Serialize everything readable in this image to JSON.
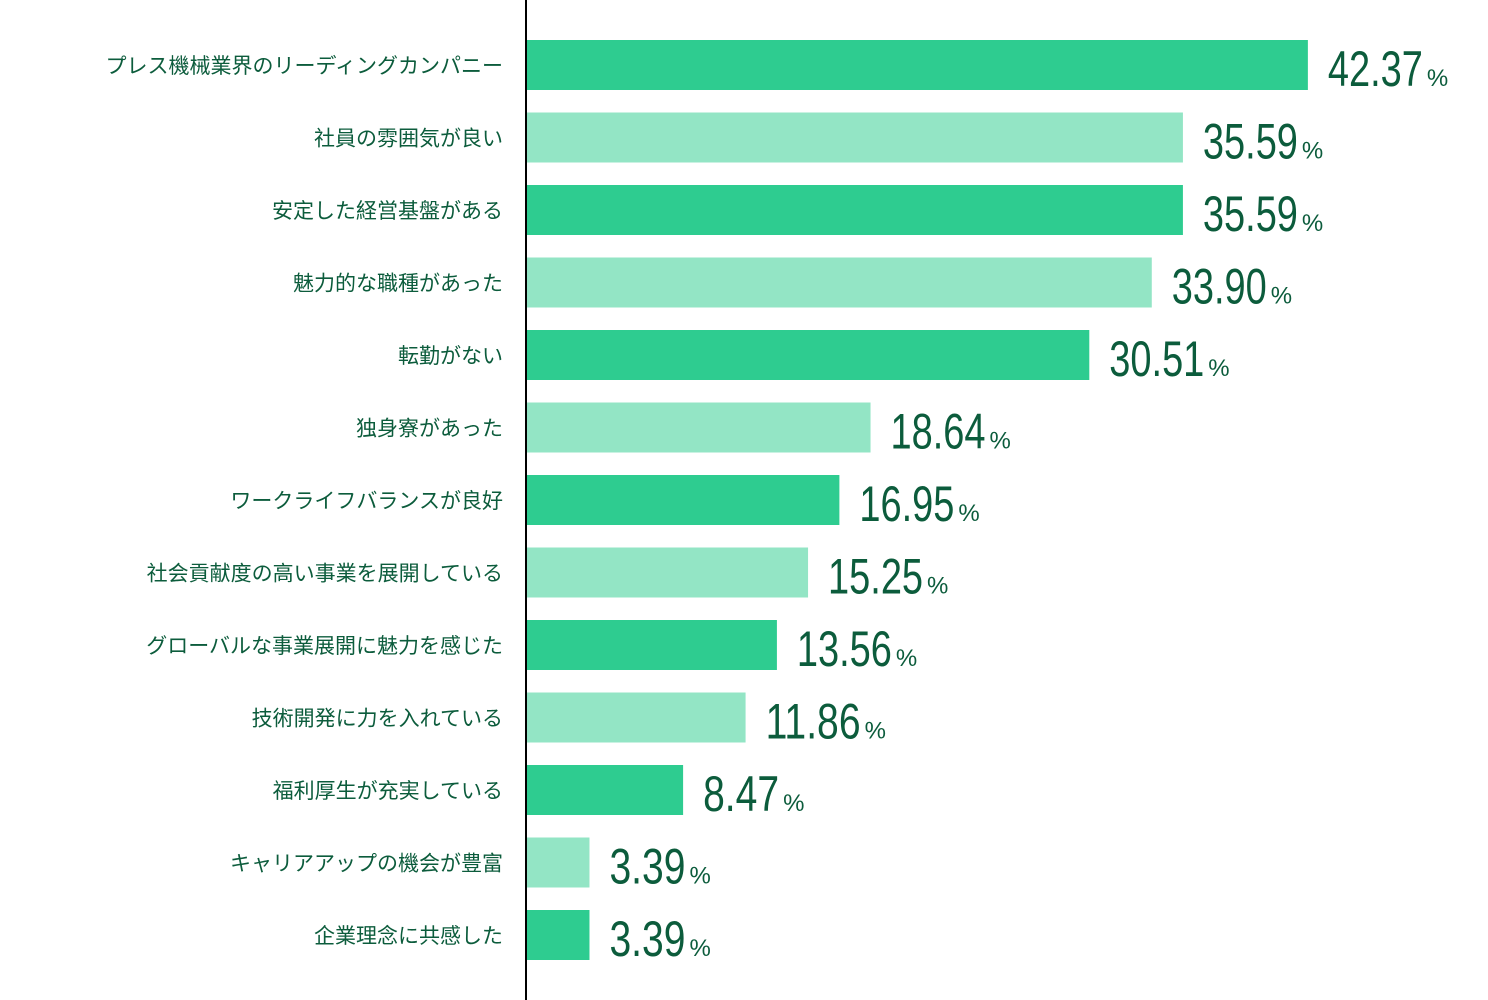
{
  "chart_data": {
    "type": "bar",
    "orientation": "horizontal",
    "categories": [
      "プレス機械業界のリーディングカンパニー",
      "社員の雰囲気が良い",
      "安定した経営基盤がある",
      "魅力的な職種があった",
      "転勤がない",
      "独身寮があった",
      "ワークライフバランスが良好",
      "社会貢献度の高い事業を展開している",
      "グローバルな事業展開に魅力を感じた",
      "技術開発に力を入れている",
      "福利厚生が充実している",
      "キャリアアップの機会が豊富",
      "企業理念に共感した"
    ],
    "values": [
      42.37,
      35.59,
      35.59,
      33.9,
      30.51,
      18.64,
      16.95,
      15.25,
      13.56,
      11.86,
      8.47,
      3.39,
      3.39
    ],
    "value_labels": [
      "42.37",
      "35.59",
      "35.59",
      "33.90",
      "30.51",
      "18.64",
      "16.95",
      "15.25",
      "13.56",
      "11.86",
      "8.47",
      "3.39",
      "3.39"
    ],
    "unit": "%",
    "xlim": [
      0,
      50
    ],
    "grid": false,
    "legend": "none",
    "colors": {
      "bar_dark": "#2ecc90",
      "bar_light": "#93e5c5",
      "text": "#0c5c3c",
      "axis": "#000000"
    }
  }
}
